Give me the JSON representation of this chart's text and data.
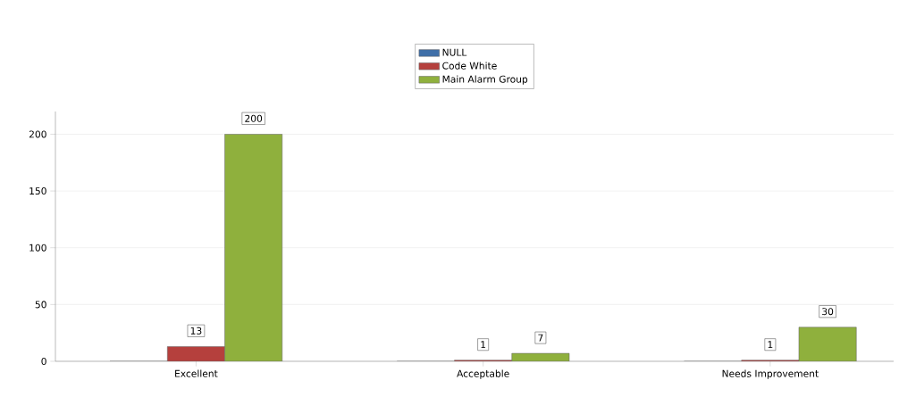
{
  "chart_data": {
    "type": "bar",
    "categories": [
      "Excellent",
      "Acceptable",
      "Needs Improvement"
    ],
    "series": [
      {
        "name": "NULL",
        "color": "#3f6fa8",
        "values": [
          0,
          0,
          0
        ]
      },
      {
        "name": "Code White",
        "color": "#b5403d",
        "values": [
          13,
          1,
          1
        ],
        "value_labels": [
          "13",
          "1",
          "1"
        ]
      },
      {
        "name": "Main Alarm Group",
        "color": "#8fb03d",
        "values": [
          200,
          7,
          30
        ],
        "value_labels": [
          "200",
          "7",
          "30"
        ]
      }
    ],
    "ylim": [
      0,
      220
    ],
    "yticks": [
      0,
      50,
      100,
      150,
      200
    ],
    "grid": "y",
    "legend": "top"
  }
}
